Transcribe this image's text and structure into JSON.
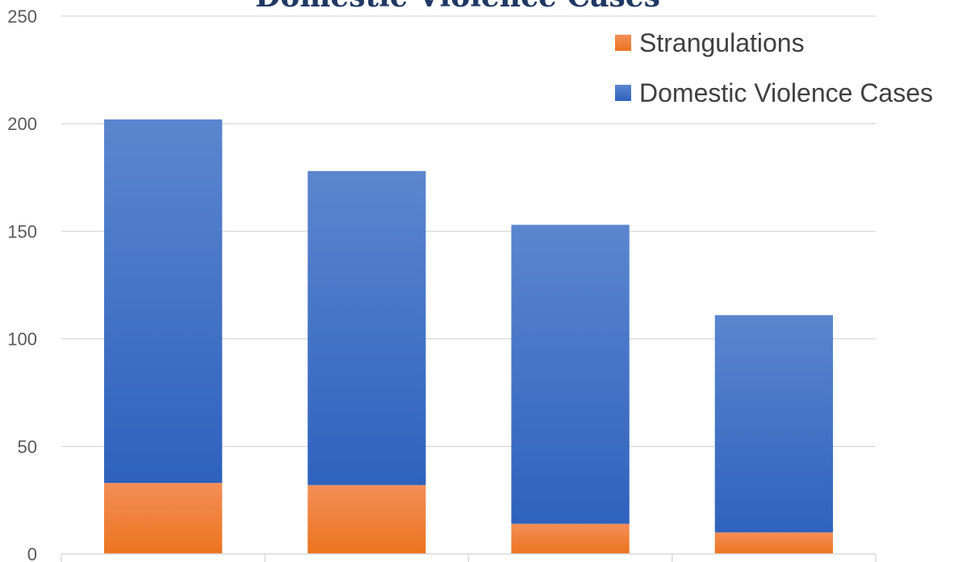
{
  "chart_data": {
    "type": "bar",
    "stacked": true,
    "title": "Domestic Violence Cases",
    "categories": [
      "",
      "",
      "",
      ""
    ],
    "series": [
      {
        "name": "Strangulations",
        "values": [
          33,
          32,
          14,
          10
        ],
        "color": "#ed7d31"
      },
      {
        "name": "Domestic Violence Cases",
        "values": [
          169,
          146,
          139,
          101
        ],
        "color": "#4472c4"
      }
    ],
    "ylim": [
      0,
      250
    ],
    "yticks": [
      "0",
      "50",
      "100",
      "150",
      "200",
      "250"
    ],
    "grid": true,
    "legend_position": "top-right",
    "legend_order": [
      "Strangulations",
      "Domestic Violence Cases"
    ]
  }
}
